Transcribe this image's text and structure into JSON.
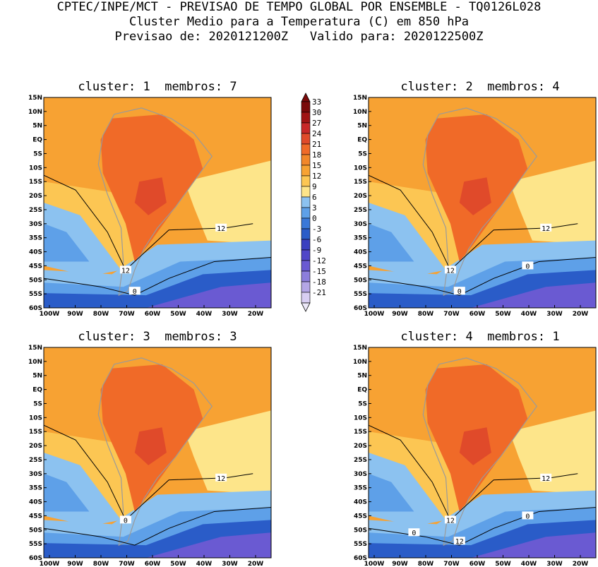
{
  "header": {
    "line1": "CPTEC/INPE/MCT - PREVISAO DE TEMPO GLOBAL POR ENSEMBLE - TQ0126L028",
    "line2": "Cluster Medio para a Temperatura (C) em 850 hPa",
    "line3": "Previsao de: 2020121200Z   Valido para: 2020122500Z"
  },
  "panels": [
    {
      "title": "cluster: 1  membros: 7",
      "contours": [
        "12",
        "12",
        "0"
      ]
    },
    {
      "title": "cluster: 2  membros: 4",
      "contours": [
        "12",
        "12",
        "0",
        "0"
      ]
    },
    {
      "title": "cluster: 3  membros: 3",
      "contours": [
        "12",
        "0"
      ]
    },
    {
      "title": "cluster: 4  membros: 1",
      "contours": [
        "12",
        "12",
        "12",
        "0",
        "0"
      ]
    }
  ],
  "lat_ticks": [
    "15N",
    "10N",
    "5N",
    "EQ",
    "5S",
    "10S",
    "15S",
    "20S",
    "25S",
    "30S",
    "35S",
    "40S",
    "45S",
    "50S",
    "55S",
    "60S"
  ],
  "lon_ticks": [
    "100W",
    "90W",
    "80W",
    "70W",
    "60W",
    "50W",
    "40W",
    "30W",
    "20W"
  ],
  "colorbar": {
    "labels": [
      "33",
      "30",
      "27",
      "24",
      "21",
      "18",
      "15",
      "12",
      "9",
      "6",
      "3",
      "0",
      "-3",
      "-6",
      "-9",
      "-12",
      "-15",
      "-18",
      "-21"
    ],
    "colors": [
      "#7a0a0a",
      "#a01414",
      "#c82828",
      "#e04a2a",
      "#f06a28",
      "#f2872a",
      "#f7a233",
      "#fcc653",
      "#fde58a",
      "#8cc2f0",
      "#5ea0e8",
      "#3a78d8",
      "#2a5cc8",
      "#3a40c0",
      "#5046c8",
      "#6a5ad2",
      "#8c7edc",
      "#b4a6e6",
      "#d8cef2"
    ],
    "top_triangle": "#7a0a0a",
    "bottom_triangle": "#ece8f8"
  },
  "colors": {
    "warm_orange": "#f7a233",
    "light_orange": "#fcc653",
    "yellow": "#fde58a",
    "light_blue": "#8cc2f0",
    "mid_blue": "#5ea0e8",
    "dark_blue": "#2a5cc8",
    "purple": "#6a5ad2",
    "hot": "#f06a28",
    "red": "#e04a2a"
  }
}
